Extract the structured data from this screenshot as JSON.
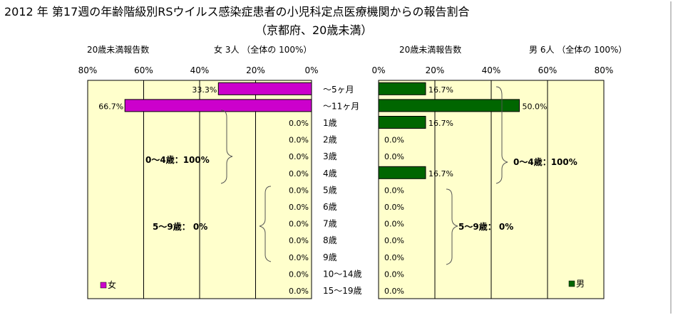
{
  "title": "2012 年 第17週の年齢階級別RSウイルス感染症患者の小児科定点医療機関からの報告割合",
  "subtitle": "（京都府、20歳未満）",
  "female_header": {
    "left": "20歳未満報告数",
    "right": "女  3人 （全体の  100%）"
  },
  "male_header": {
    "left": "20歳未満報告数",
    "right": "男  6人 （全体の  100%）"
  },
  "legend": {
    "female": "女",
    "male": "男"
  },
  "colors": {
    "female": "#cc00cc",
    "male": "#006600",
    "plot_bg": "#ffffcc",
    "grid": "#000000"
  },
  "brackets": {
    "female_0_4": "0～4歳：100%",
    "female_5_9": "5～9歳：  0%",
    "male_0_4": "0～4歳：100%",
    "male_5_9": "5～9歳：  0%"
  },
  "chart_data": {
    "type": "bar",
    "orientation": "horizontal-pyramid",
    "title": "2012 年 第17週の年齢階級別RSウイルス感染症患者の小児科定点医療機関からの報告割合",
    "subtitle": "（京都府、20歳未満）",
    "categories": [
      "～5ヶ月",
      "～11ヶ月",
      "1歳",
      "2歳",
      "3歳",
      "4歳",
      "5歳",
      "6歳",
      "7歳",
      "8歳",
      "9歳",
      "10～14歳",
      "15～19歳"
    ],
    "series": [
      {
        "name": "女",
        "values": [
          33.3,
          66.7,
          0.0,
          0.0,
          0.0,
          0.0,
          0.0,
          0.0,
          0.0,
          0.0,
          0.0,
          0.0,
          0.0
        ]
      },
      {
        "name": "男",
        "values": [
          16.7,
          50.0,
          16.7,
          0.0,
          0.0,
          16.7,
          0.0,
          0.0,
          0.0,
          0.0,
          0.0,
          0.0,
          0.0
        ]
      }
    ],
    "value_labels": {
      "女": [
        "33.3%",
        "66.7%",
        "0.0%",
        "0.0%",
        "0.0%",
        "0.0%",
        "0.0%",
        "0.0%",
        "0.0%",
        "0.0%",
        "0.0%",
        "0.0%",
        "0.0%"
      ],
      "男": [
        "16.7%",
        "50.0%",
        "16.7%",
        "0.0%",
        "0.0%",
        "16.7%",
        "0.0%",
        "0.0%",
        "0.0%",
        "0.0%",
        "0.0%",
        "0.0%",
        "0.0%"
      ]
    },
    "x_ticks": [
      80,
      60,
      40,
      20,
      0
    ],
    "x_tick_labels_female": [
      "80%",
      "60%",
      "40%",
      "20%",
      "0%"
    ],
    "x_tick_labels_male": [
      "0%",
      "20%",
      "40%",
      "60%",
      "80%"
    ],
    "xlim": [
      0,
      80
    ],
    "grid": true,
    "legend_position": "bottom-left / bottom-right"
  }
}
